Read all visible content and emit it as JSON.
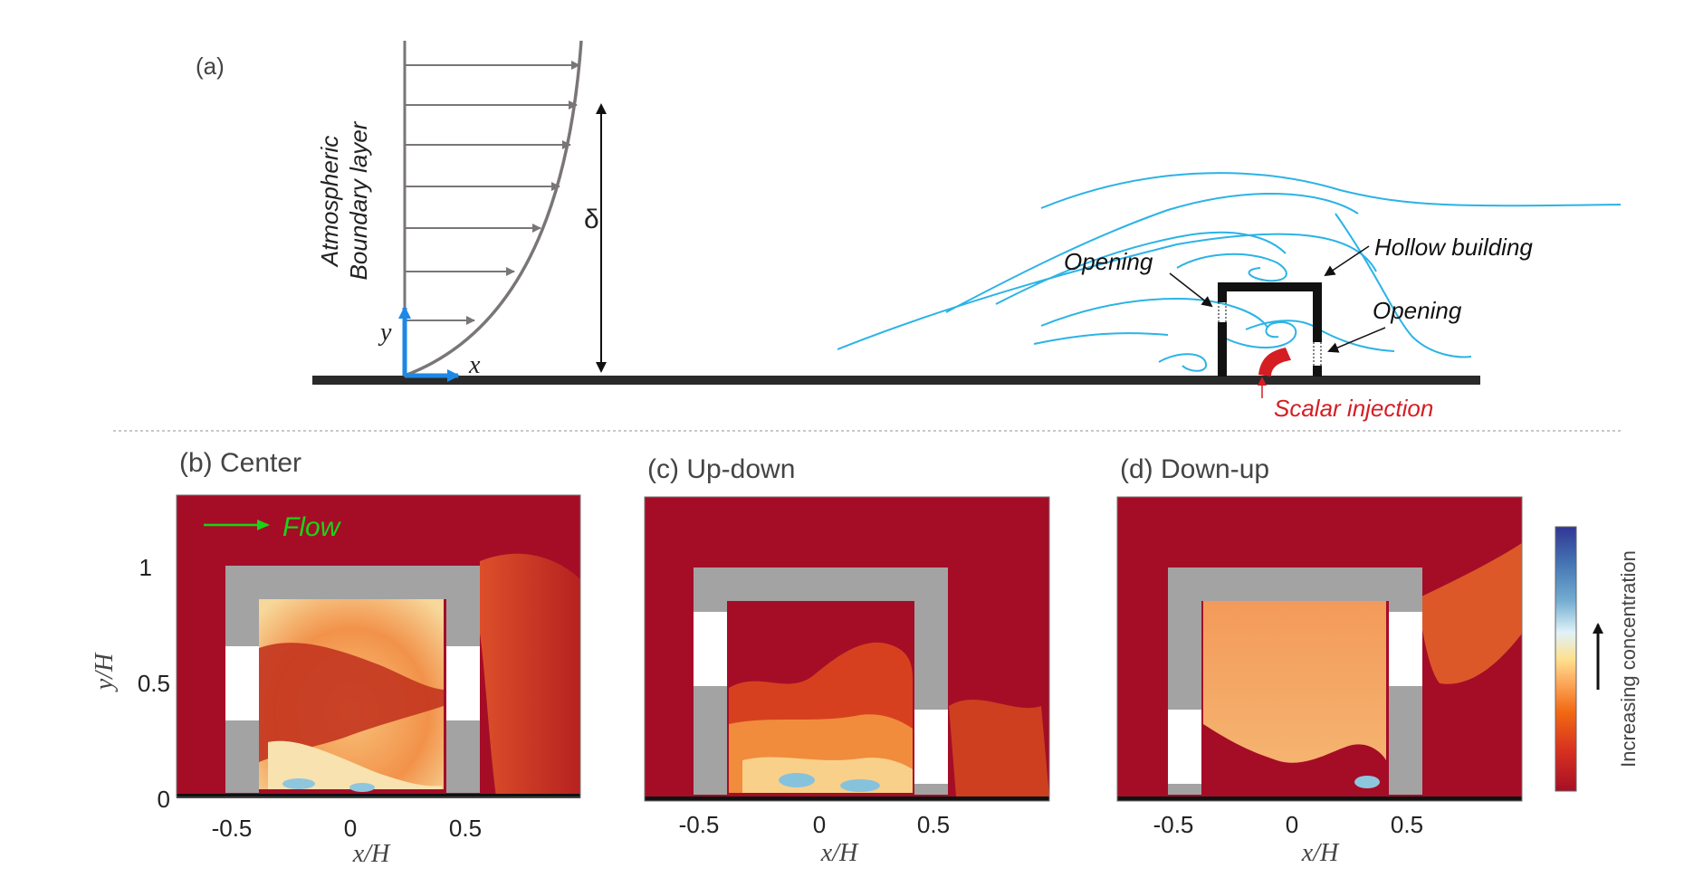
{
  "panel_a": {
    "label": "(a)",
    "boundary_layer_line1": "Atmospheric",
    "boundary_layer_line2": "Boundary layer",
    "delta_symbol": "δ",
    "axis_x": "x",
    "axis_y": "y",
    "opening_left": "Opening",
    "opening_right": "Opening",
    "hollow_building": "Hollow building",
    "scalar_injection": "Scalar injection"
  },
  "panels": [
    {
      "label": "(b) Center",
      "flow_label": "Flow"
    },
    {
      "label": "(c) Up-down"
    },
    {
      "label": "(d) Down-up"
    }
  ],
  "axes": {
    "x_label": "x/H",
    "y_label": "y/H",
    "x_ticks": [
      "-0.5",
      "0",
      "0.5"
    ],
    "y_ticks": [
      "0",
      "0.5",
      "1"
    ]
  },
  "colorbar": {
    "label": "Increasing concentration",
    "colors": [
      "#a50f26",
      "#d7301f",
      "#f16913",
      "#fdae61",
      "#fee090",
      "#e0f3f8",
      "#74add1",
      "#4575b4",
      "#313695"
    ]
  },
  "colors": {
    "background_field": "#a50d27",
    "building": "#a3a3a3",
    "flow_arrow": "#17d617",
    "streamline": "#2bb3e6",
    "injection": "#d41e24",
    "coord_axes": "#1e88e5",
    "profile": "#7a7676"
  }
}
